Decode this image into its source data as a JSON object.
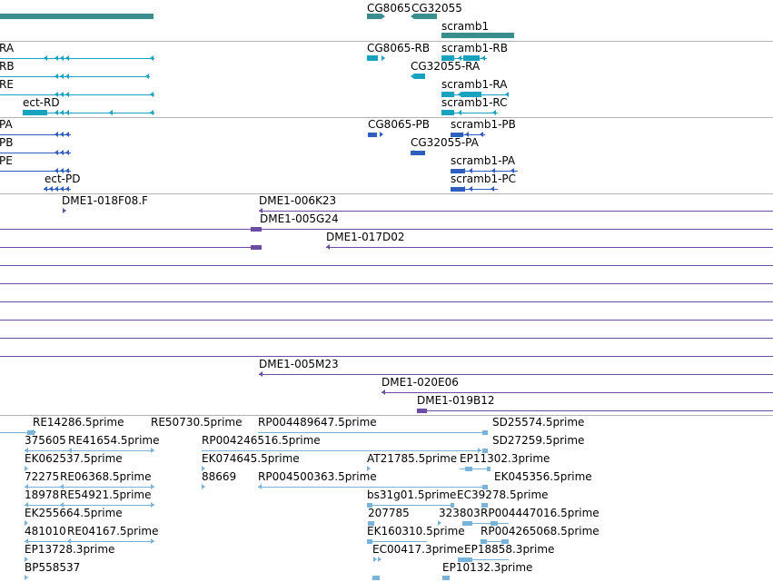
{
  "browser": {
    "colors": {
      "gene": "#3a8d8d",
      "transcript": "#17a3bf",
      "protein": "#2e5fbf",
      "clone": "#6a4da3",
      "est": "#7ab3d9",
      "separator": "#b4b4b4"
    },
    "genes": [
      "CG8065",
      "CG32055",
      "scramb1"
    ],
    "transcripts": [
      "RA",
      "RB",
      "RE",
      "ect-RD",
      "CG8065-RB",
      "scramb1-RB",
      "CG32055-RA",
      "scramb1-RA",
      "scramb1-RC"
    ],
    "proteins": [
      "PA",
      "PB",
      "PE",
      "ect-PD",
      "CG8065-PB",
      "scramb1-PB",
      "CG32055-PA",
      "scramb1-PA",
      "scramb1-PC"
    ],
    "clones": [
      "DME1-018F08.F",
      "DME1-006K23",
      "DME1-005G24",
      "DME1-017D02",
      "DME1-005M23",
      "DME1-020E06",
      "DME1-019B12"
    ],
    "ests": [
      "RE14286.5prime",
      "RE50730.5prime",
      "RP004489647.5prime",
      "SD25574.5prime",
      "375605",
      "RE41654.5prime",
      "RP004246516.5prime",
      "SD27259.5prime",
      "EK062537.5prime",
      "EK074645.5prime",
      "AT21785.5prime",
      "EP11302.3prime",
      "72275",
      "RE06368.5prime",
      "88669",
      "RP004500363.5prime",
      "EK045356.5prime",
      "18978",
      "RE54921.5prime",
      "bs31g01.5prime",
      "EC39278.5prime",
      "EK255664.5prime",
      "207785",
      "323803",
      "RP004447016.5prime",
      "481010",
      "RE04167.5prime",
      "EK160310.5prime",
      "RP004265068.5prime",
      "EP13728.3prime",
      "EC00417.3prime",
      "EP18858.3prime",
      "BP558537",
      "EP10132.3prime"
    ]
  }
}
